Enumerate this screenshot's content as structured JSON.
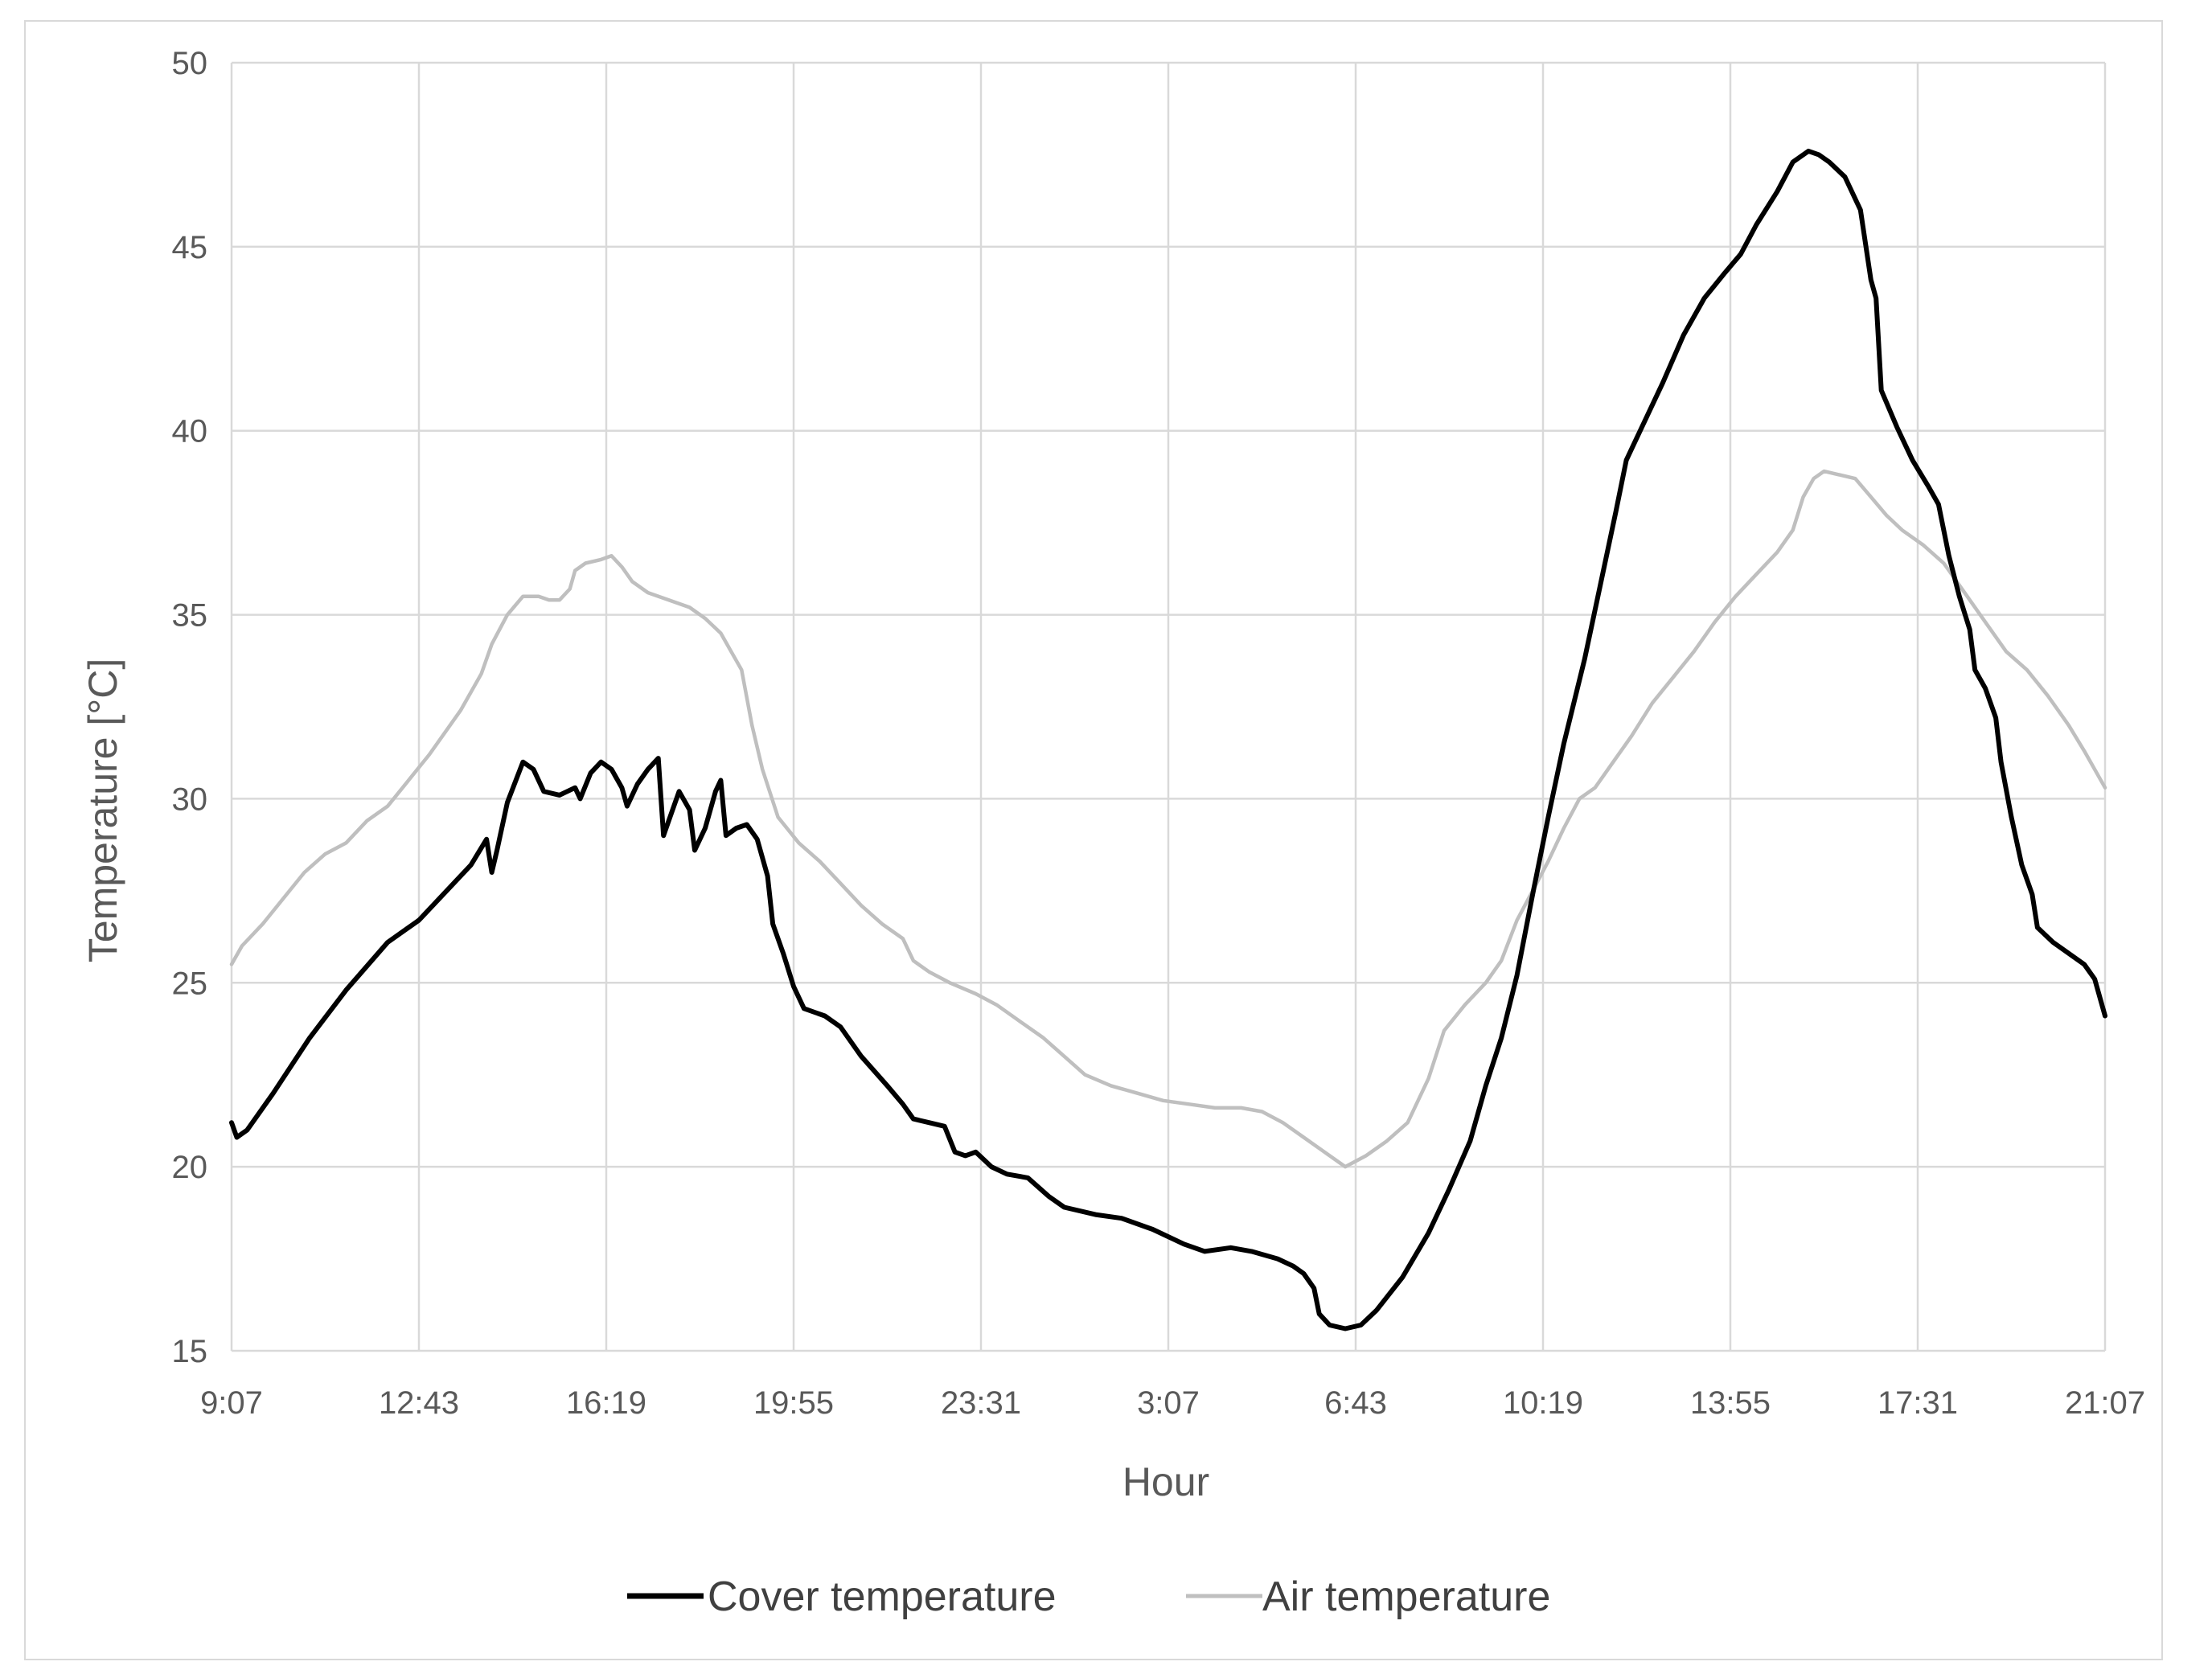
{
  "chart_data": {
    "type": "line",
    "title": "",
    "xlabel": "Hour",
    "ylabel": "Temperature [°C]",
    "ylim": [
      15,
      50
    ],
    "yticks": [
      15,
      20,
      25,
      30,
      35,
      40,
      45,
      50
    ],
    "xlim": [
      0,
      36
    ],
    "x_unit": "hours since 9:07",
    "xtick_labels": [
      "9:07",
      "12:43",
      "16:19",
      "19:55",
      "23:31",
      "3:07",
      "6:43",
      "10:19",
      "13:55",
      "17:31",
      "21:07"
    ],
    "grid": true,
    "legend_position": "bottom",
    "series": [
      {
        "name": "Cover temperature",
        "color": "#000000",
        "points": [
          [
            0.0,
            21.2
          ],
          [
            0.1,
            20.8
          ],
          [
            0.3,
            21.0
          ],
          [
            0.8,
            22.0
          ],
          [
            1.5,
            23.5
          ],
          [
            2.2,
            24.8
          ],
          [
            3.0,
            26.1
          ],
          [
            3.6,
            26.7
          ],
          [
            4.2,
            27.6
          ],
          [
            4.6,
            28.2
          ],
          [
            4.9,
            28.9
          ],
          [
            5.0,
            28.0
          ],
          [
            5.1,
            28.6
          ],
          [
            5.3,
            29.9
          ],
          [
            5.6,
            31.0
          ],
          [
            5.8,
            30.8
          ],
          [
            6.0,
            30.2
          ],
          [
            6.3,
            30.1
          ],
          [
            6.6,
            30.3
          ],
          [
            6.7,
            30.0
          ],
          [
            6.9,
            30.7
          ],
          [
            7.1,
            31.0
          ],
          [
            7.3,
            30.8
          ],
          [
            7.5,
            30.3
          ],
          [
            7.6,
            29.8
          ],
          [
            7.8,
            30.4
          ],
          [
            8.0,
            30.8
          ],
          [
            8.2,
            31.1
          ],
          [
            8.3,
            29.0
          ],
          [
            8.5,
            29.8
          ],
          [
            8.6,
            30.2
          ],
          [
            8.8,
            29.7
          ],
          [
            8.9,
            28.6
          ],
          [
            9.1,
            29.2
          ],
          [
            9.3,
            30.2
          ],
          [
            9.4,
            30.5
          ],
          [
            9.5,
            29.0
          ],
          [
            9.7,
            29.2
          ],
          [
            9.9,
            29.3
          ],
          [
            10.1,
            28.9
          ],
          [
            10.3,
            27.9
          ],
          [
            10.4,
            26.6
          ],
          [
            10.6,
            25.8
          ],
          [
            10.8,
            24.9
          ],
          [
            11.0,
            24.3
          ],
          [
            11.4,
            24.1
          ],
          [
            11.7,
            23.8
          ],
          [
            12.1,
            23.0
          ],
          [
            12.6,
            22.2
          ],
          [
            12.9,
            21.7
          ],
          [
            13.1,
            21.3
          ],
          [
            13.4,
            21.2
          ],
          [
            13.7,
            21.1
          ],
          [
            13.9,
            20.4
          ],
          [
            14.1,
            20.3
          ],
          [
            14.3,
            20.4
          ],
          [
            14.6,
            20.0
          ],
          [
            14.9,
            19.8
          ],
          [
            15.3,
            19.7
          ],
          [
            15.7,
            19.2
          ],
          [
            16.0,
            18.9
          ],
          [
            16.6,
            18.7
          ],
          [
            17.1,
            18.6
          ],
          [
            17.7,
            18.3
          ],
          [
            18.3,
            17.9
          ],
          [
            18.7,
            17.7
          ],
          [
            19.2,
            17.8
          ],
          [
            19.6,
            17.7
          ],
          [
            20.1,
            17.5
          ],
          [
            20.4,
            17.3
          ],
          [
            20.6,
            17.1
          ],
          [
            20.8,
            16.7
          ],
          [
            20.9,
            16.0
          ],
          [
            21.1,
            15.7
          ],
          [
            21.4,
            15.6
          ],
          [
            21.7,
            15.7
          ],
          [
            22.0,
            16.1
          ],
          [
            22.5,
            17.0
          ],
          [
            23.0,
            18.2
          ],
          [
            23.4,
            19.4
          ],
          [
            23.8,
            20.7
          ],
          [
            24.1,
            22.2
          ],
          [
            24.4,
            23.5
          ],
          [
            24.7,
            25.2
          ],
          [
            25.0,
            27.4
          ],
          [
            25.3,
            29.5
          ],
          [
            25.6,
            31.5
          ],
          [
            26.0,
            33.8
          ],
          [
            26.3,
            35.8
          ],
          [
            26.6,
            37.8
          ],
          [
            26.8,
            39.2
          ],
          [
            27.1,
            40.1
          ],
          [
            27.5,
            41.3
          ],
          [
            27.9,
            42.6
          ],
          [
            28.3,
            43.6
          ],
          [
            28.7,
            44.3
          ],
          [
            29.0,
            44.8
          ],
          [
            29.3,
            45.6
          ],
          [
            29.7,
            46.5
          ],
          [
            30.0,
            47.3
          ],
          [
            30.3,
            47.6
          ],
          [
            30.5,
            47.5
          ],
          [
            30.7,
            47.3
          ],
          [
            31.0,
            46.9
          ],
          [
            31.3,
            46.0
          ],
          [
            31.5,
            44.1
          ],
          [
            31.6,
            43.6
          ],
          [
            31.7,
            41.1
          ],
          [
            32.0,
            40.1
          ],
          [
            32.3,
            39.2
          ],
          [
            32.6,
            38.5
          ],
          [
            32.8,
            38.0
          ],
          [
            33.0,
            36.6
          ],
          [
            33.2,
            35.5
          ],
          [
            33.4,
            34.6
          ],
          [
            33.5,
            33.5
          ],
          [
            33.7,
            33.0
          ],
          [
            33.9,
            32.2
          ],
          [
            34.0,
            31.0
          ],
          [
            34.2,
            29.5
          ],
          [
            34.4,
            28.2
          ],
          [
            34.6,
            27.4
          ],
          [
            34.7,
            26.5
          ],
          [
            35.0,
            26.1
          ],
          [
            35.3,
            25.8
          ],
          [
            35.6,
            25.5
          ],
          [
            35.8,
            25.1
          ],
          [
            36.0,
            24.1
          ]
        ]
      },
      {
        "name": "Air temperature",
        "color": "#bfbfbf",
        "points": [
          [
            0.0,
            25.5
          ],
          [
            0.2,
            26.0
          ],
          [
            0.6,
            26.6
          ],
          [
            1.0,
            27.3
          ],
          [
            1.4,
            28.0
          ],
          [
            1.8,
            28.5
          ],
          [
            2.2,
            28.8
          ],
          [
            2.6,
            29.4
          ],
          [
            3.0,
            29.8
          ],
          [
            3.4,
            30.5
          ],
          [
            3.8,
            31.2
          ],
          [
            4.2,
            32.0
          ],
          [
            4.4,
            32.4
          ],
          [
            4.8,
            33.4
          ],
          [
            5.0,
            34.2
          ],
          [
            5.3,
            35.0
          ],
          [
            5.6,
            35.5
          ],
          [
            5.9,
            35.5
          ],
          [
            6.1,
            35.4
          ],
          [
            6.3,
            35.4
          ],
          [
            6.5,
            35.7
          ],
          [
            6.6,
            36.2
          ],
          [
            6.8,
            36.4
          ],
          [
            7.1,
            36.5
          ],
          [
            7.3,
            36.6
          ],
          [
            7.5,
            36.3
          ],
          [
            7.7,
            35.9
          ],
          [
            8.0,
            35.6
          ],
          [
            8.4,
            35.4
          ],
          [
            8.8,
            35.2
          ],
          [
            9.1,
            34.9
          ],
          [
            9.4,
            34.5
          ],
          [
            9.6,
            34.0
          ],
          [
            9.8,
            33.5
          ],
          [
            10.0,
            32.0
          ],
          [
            10.2,
            30.8
          ],
          [
            10.5,
            29.5
          ],
          [
            10.9,
            28.8
          ],
          [
            11.3,
            28.3
          ],
          [
            11.7,
            27.7
          ],
          [
            12.1,
            27.1
          ],
          [
            12.5,
            26.6
          ],
          [
            12.9,
            26.2
          ],
          [
            13.1,
            25.6
          ],
          [
            13.4,
            25.3
          ],
          [
            13.8,
            25.0
          ],
          [
            14.3,
            24.7
          ],
          [
            14.7,
            24.4
          ],
          [
            15.1,
            24.0
          ],
          [
            15.6,
            23.5
          ],
          [
            16.0,
            23.0
          ],
          [
            16.4,
            22.5
          ],
          [
            16.9,
            22.2
          ],
          [
            17.4,
            22.0
          ],
          [
            17.9,
            21.8
          ],
          [
            18.4,
            21.7
          ],
          [
            18.9,
            21.6
          ],
          [
            19.4,
            21.6
          ],
          [
            19.8,
            21.5
          ],
          [
            20.2,
            21.2
          ],
          [
            20.6,
            20.8
          ],
          [
            21.0,
            20.4
          ],
          [
            21.4,
            20.0
          ],
          [
            21.8,
            20.3
          ],
          [
            22.2,
            20.7
          ],
          [
            22.6,
            21.2
          ],
          [
            23.0,
            22.4
          ],
          [
            23.3,
            23.7
          ],
          [
            23.7,
            24.4
          ],
          [
            24.1,
            25.0
          ],
          [
            24.4,
            25.6
          ],
          [
            24.7,
            26.7
          ],
          [
            25.0,
            27.5
          ],
          [
            25.3,
            28.3
          ],
          [
            25.6,
            29.2
          ],
          [
            25.9,
            30.0
          ],
          [
            26.2,
            30.3
          ],
          [
            26.5,
            30.9
          ],
          [
            26.9,
            31.7
          ],
          [
            27.3,
            32.6
          ],
          [
            27.7,
            33.3
          ],
          [
            28.1,
            34.0
          ],
          [
            28.5,
            34.8
          ],
          [
            28.9,
            35.5
          ],
          [
            29.3,
            36.1
          ],
          [
            29.7,
            36.7
          ],
          [
            30.0,
            37.3
          ],
          [
            30.2,
            38.2
          ],
          [
            30.4,
            38.7
          ],
          [
            30.6,
            38.9
          ],
          [
            30.9,
            38.8
          ],
          [
            31.2,
            38.7
          ],
          [
            31.5,
            38.2
          ],
          [
            31.8,
            37.7
          ],
          [
            32.1,
            37.3
          ],
          [
            32.5,
            36.9
          ],
          [
            32.9,
            36.4
          ],
          [
            33.3,
            35.6
          ],
          [
            33.7,
            34.8
          ],
          [
            34.1,
            34.0
          ],
          [
            34.5,
            33.5
          ],
          [
            34.9,
            32.8
          ],
          [
            35.3,
            32.0
          ],
          [
            35.6,
            31.3
          ],
          [
            36.0,
            30.3
          ]
        ]
      }
    ]
  }
}
